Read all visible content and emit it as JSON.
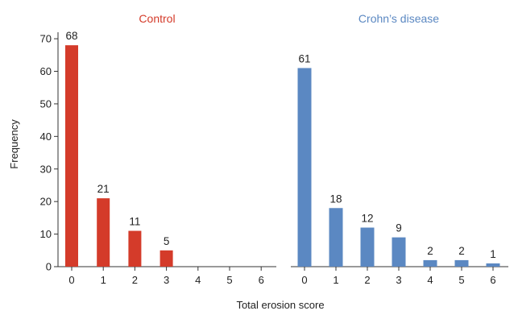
{
  "chart_data": {
    "type": "bar",
    "ylabel": "Frequency",
    "xlabel": "Total erosion score",
    "ylim": [
      0,
      72
    ],
    "yticks": [
      0,
      10,
      20,
      30,
      40,
      50,
      60,
      70
    ],
    "xticks": [
      "0",
      "1",
      "2",
      "3",
      "4",
      "5",
      "6"
    ],
    "grid": false,
    "panels": [
      {
        "title": "Control",
        "color": "#d43b2a",
        "categories": [
          "0",
          "1",
          "2",
          "3",
          "4",
          "5",
          "6"
        ],
        "values": [
          68,
          21,
          11,
          5,
          0,
          0,
          0
        ],
        "labels": [
          "68",
          "21",
          "11",
          "5",
          "",
          "",
          ""
        ]
      },
      {
        "title": "Crohn’s disease",
        "color": "#5b88c2",
        "categories": [
          "0",
          "1",
          "2",
          "3",
          "4",
          "5",
          "6"
        ],
        "values": [
          61,
          18,
          12,
          9,
          2,
          2,
          1
        ],
        "labels": [
          "61",
          "18",
          "12",
          "9",
          "2",
          "2",
          "1"
        ]
      }
    ]
  }
}
